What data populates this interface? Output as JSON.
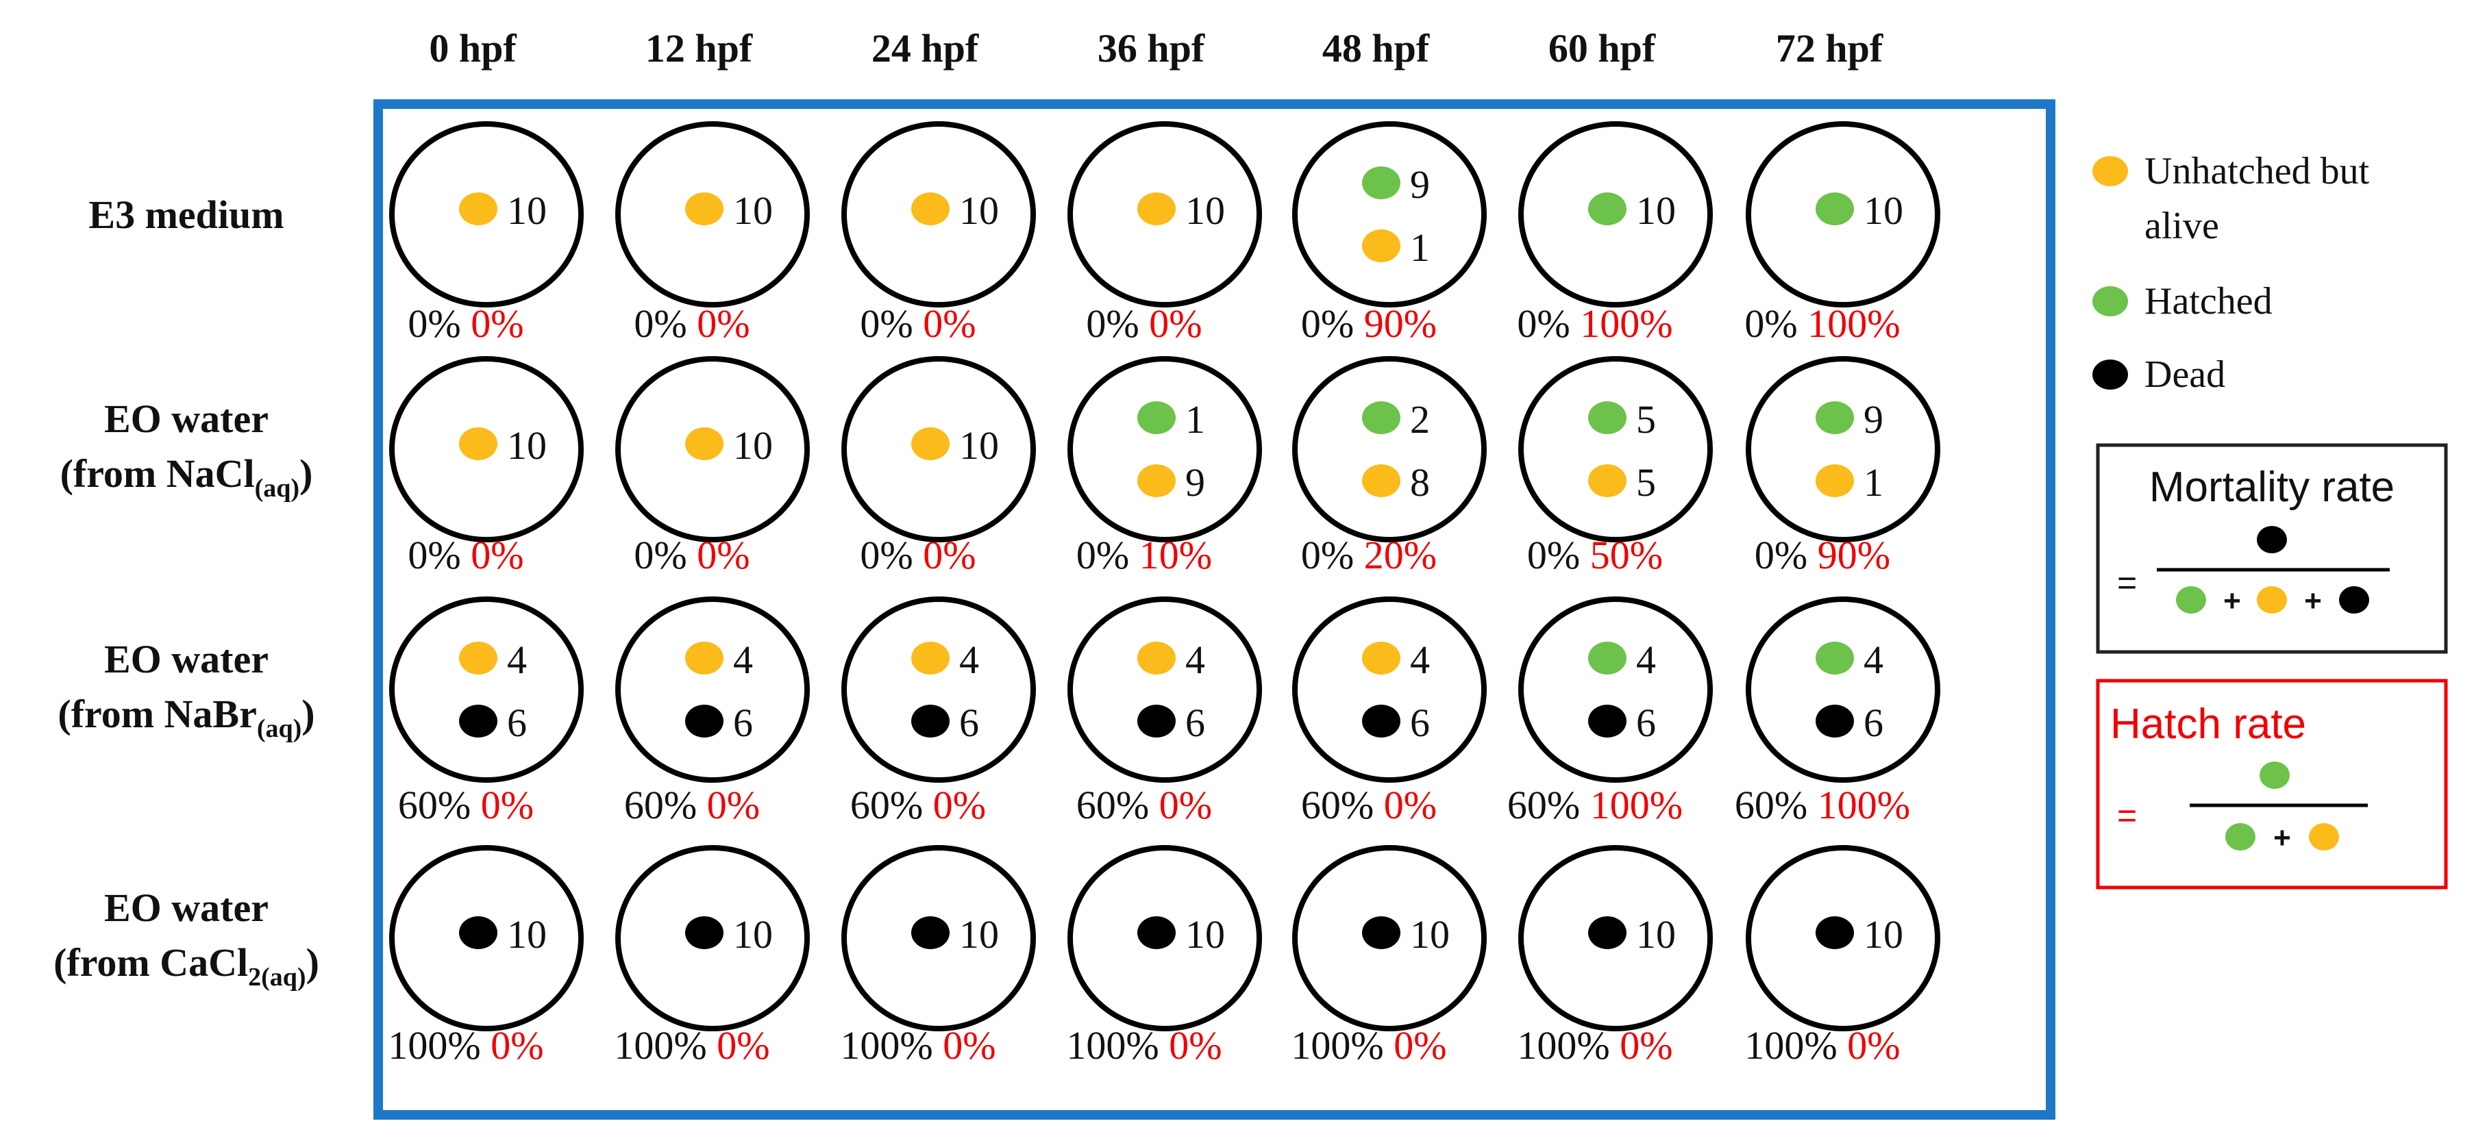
{
  "time_points": [
    "0 hpf",
    "12 hpf",
    "24 hpf",
    "36 hpf",
    "48 hpf",
    "60 hpf",
    "72 hpf"
  ],
  "rows": [
    {
      "label_lines": [
        {
          "main": "E3 medium",
          "sub": ""
        }
      ],
      "cells": [
        {
          "dots": [
            {
              "color": "orange",
              "count": "10"
            }
          ],
          "mortality": "0%",
          "hatch": "0%"
        },
        {
          "dots": [
            {
              "color": "orange",
              "count": "10"
            }
          ],
          "mortality": "0%",
          "hatch": "0%"
        },
        {
          "dots": [
            {
              "color": "orange",
              "count": "10"
            }
          ],
          "mortality": "0%",
          "hatch": "0%"
        },
        {
          "dots": [
            {
              "color": "orange",
              "count": "10"
            }
          ],
          "mortality": "0%",
          "hatch": "0%"
        },
        {
          "dots": [
            {
              "color": "green",
              "count": "9"
            },
            {
              "color": "orange",
              "count": "1"
            }
          ],
          "mortality": "0%",
          "hatch": "90%"
        },
        {
          "dots": [
            {
              "color": "green",
              "count": "10"
            }
          ],
          "mortality": "0%",
          "hatch": "100%"
        },
        {
          "dots": [
            {
              "color": "green",
              "count": "10"
            }
          ],
          "mortality": "0%",
          "hatch": "100%"
        }
      ]
    },
    {
      "label_lines": [
        {
          "main": "EO water",
          "sub": ""
        },
        {
          "main": "(from NaCl",
          "sub": "(aq)",
          "tail": ")"
        }
      ],
      "cells": [
        {
          "dots": [
            {
              "color": "orange",
              "count": "10"
            }
          ],
          "mortality": "0%",
          "hatch": "0%"
        },
        {
          "dots": [
            {
              "color": "orange",
              "count": "10"
            }
          ],
          "mortality": "0%",
          "hatch": "0%"
        },
        {
          "dots": [
            {
              "color": "orange",
              "count": "10"
            }
          ],
          "mortality": "0%",
          "hatch": "0%"
        },
        {
          "dots": [
            {
              "color": "green",
              "count": "1"
            },
            {
              "color": "orange",
              "count": "9"
            }
          ],
          "mortality": "0%",
          "hatch": "10%"
        },
        {
          "dots": [
            {
              "color": "green",
              "count": "2"
            },
            {
              "color": "orange",
              "count": "8"
            }
          ],
          "mortality": "0%",
          "hatch": "20%"
        },
        {
          "dots": [
            {
              "color": "green",
              "count": "5"
            },
            {
              "color": "orange",
              "count": "5"
            }
          ],
          "mortality": "0%",
          "hatch": "50%"
        },
        {
          "dots": [
            {
              "color": "green",
              "count": "9"
            },
            {
              "color": "orange",
              "count": "1"
            }
          ],
          "mortality": "0%",
          "hatch": "90%"
        }
      ]
    },
    {
      "label_lines": [
        {
          "main": "EO water",
          "sub": ""
        },
        {
          "main": "(from NaBr",
          "sub": "(aq)",
          "tail": ")"
        }
      ],
      "cells": [
        {
          "dots": [
            {
              "color": "orange",
              "count": "4"
            },
            {
              "color": "black",
              "count": "6"
            }
          ],
          "mortality": "60%",
          "hatch": "0%"
        },
        {
          "dots": [
            {
              "color": "orange",
              "count": "4"
            },
            {
              "color": "black",
              "count": "6"
            }
          ],
          "mortality": "60%",
          "hatch": "0%"
        },
        {
          "dots": [
            {
              "color": "orange",
              "count": "4"
            },
            {
              "color": "black",
              "count": "6"
            }
          ],
          "mortality": "60%",
          "hatch": "0%"
        },
        {
          "dots": [
            {
              "color": "orange",
              "count": "4"
            },
            {
              "color": "black",
              "count": "6"
            }
          ],
          "mortality": "60%",
          "hatch": "0%"
        },
        {
          "dots": [
            {
              "color": "orange",
              "count": "4"
            },
            {
              "color": "black",
              "count": "6"
            }
          ],
          "mortality": "60%",
          "hatch": "0%"
        },
        {
          "dots": [
            {
              "color": "green",
              "count": "4"
            },
            {
              "color": "black",
              "count": "6"
            }
          ],
          "mortality": "60%",
          "hatch": "100%"
        },
        {
          "dots": [
            {
              "color": "green",
              "count": "4"
            },
            {
              "color": "black",
              "count": "6"
            }
          ],
          "mortality": "60%",
          "hatch": "100%"
        }
      ]
    },
    {
      "label_lines": [
        {
          "main": "EO water",
          "sub": ""
        },
        {
          "main": "(from CaCl",
          "sub": "2(aq)",
          "tail": ")"
        }
      ],
      "cells": [
        {
          "dots": [
            {
              "color": "black",
              "count": "10"
            }
          ],
          "mortality": "100%",
          "hatch": "0%"
        },
        {
          "dots": [
            {
              "color": "black",
              "count": "10"
            }
          ],
          "mortality": "100%",
          "hatch": "0%"
        },
        {
          "dots": [
            {
              "color": "black",
              "count": "10"
            }
          ],
          "mortality": "100%",
          "hatch": "0%"
        },
        {
          "dots": [
            {
              "color": "black",
              "count": "10"
            }
          ],
          "mortality": "100%",
          "hatch": "0%"
        },
        {
          "dots": [
            {
              "color": "black",
              "count": "10"
            }
          ],
          "mortality": "100%",
          "hatch": "0%"
        },
        {
          "dots": [
            {
              "color": "black",
              "count": "10"
            }
          ],
          "mortality": "100%",
          "hatch": "0%"
        },
        {
          "dots": [
            {
              "color": "black",
              "count": "10"
            }
          ],
          "mortality": "100%",
          "hatch": "0%"
        }
      ]
    }
  ],
  "legend": {
    "items": [
      {
        "color": "orange",
        "lines": [
          "Unhatched but",
          "alive"
        ]
      },
      {
        "color": "green",
        "lines": [
          "Hatched"
        ]
      },
      {
        "color": "black",
        "lines": [
          "Dead"
        ]
      }
    ]
  },
  "formulas": {
    "mortality": {
      "title": "Mortality rate",
      "equals": "=",
      "numerator": [
        "black"
      ],
      "denominator": [
        "green",
        "orange",
        "black"
      ],
      "plus": "+"
    },
    "hatch": {
      "title": "Hatch rate",
      "equals": "=",
      "numerator": [
        "green"
      ],
      "denominator": [
        "green",
        "orange"
      ],
      "plus": "+"
    }
  },
  "colors": {
    "orange": "#FBBB1B",
    "green": "#6CC24A",
    "black": "#000000",
    "red": "#F00000",
    "frame": "#1E78C8",
    "text": "#111111"
  }
}
